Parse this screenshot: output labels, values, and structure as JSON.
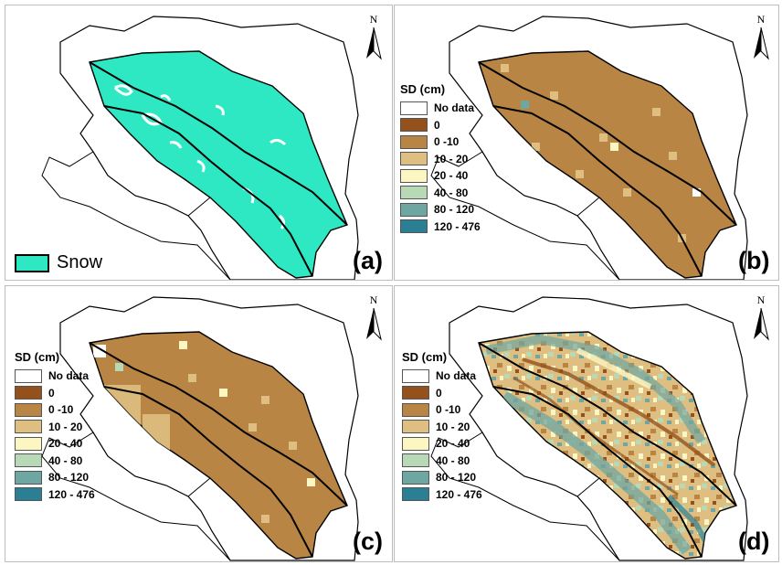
{
  "panels": [
    {
      "id": "a",
      "label": "(a)",
      "fill": "snow"
    },
    {
      "id": "b",
      "label": "(b)",
      "fill": "coarse"
    },
    {
      "id": "c",
      "label": "(c)",
      "fill": "coarse-mixed"
    },
    {
      "id": "d",
      "label": "(d)",
      "fill": "fine"
    }
  ],
  "north_arrow": {
    "letter": "N"
  },
  "snow_legend": {
    "label": "Snow",
    "color": "#2ee8c4"
  },
  "sd_legend": {
    "title": "SD (cm)",
    "classes": [
      {
        "label": "No data",
        "color": "#ffffff"
      },
      {
        "label": "0",
        "color": "#94511c"
      },
      {
        "label": "0 -10",
        "color": "#b98545"
      },
      {
        "label": "10 - 20",
        "color": "#dfbf81"
      },
      {
        "label": "20 - 40",
        "color": "#fbf6c2"
      },
      {
        "label": "40 - 80",
        "color": "#b7d9b6"
      },
      {
        "label": "80 - 120",
        "color": "#6ea6a1"
      },
      {
        "label": "120 - 476",
        "color": "#2a7f94"
      }
    ]
  }
}
